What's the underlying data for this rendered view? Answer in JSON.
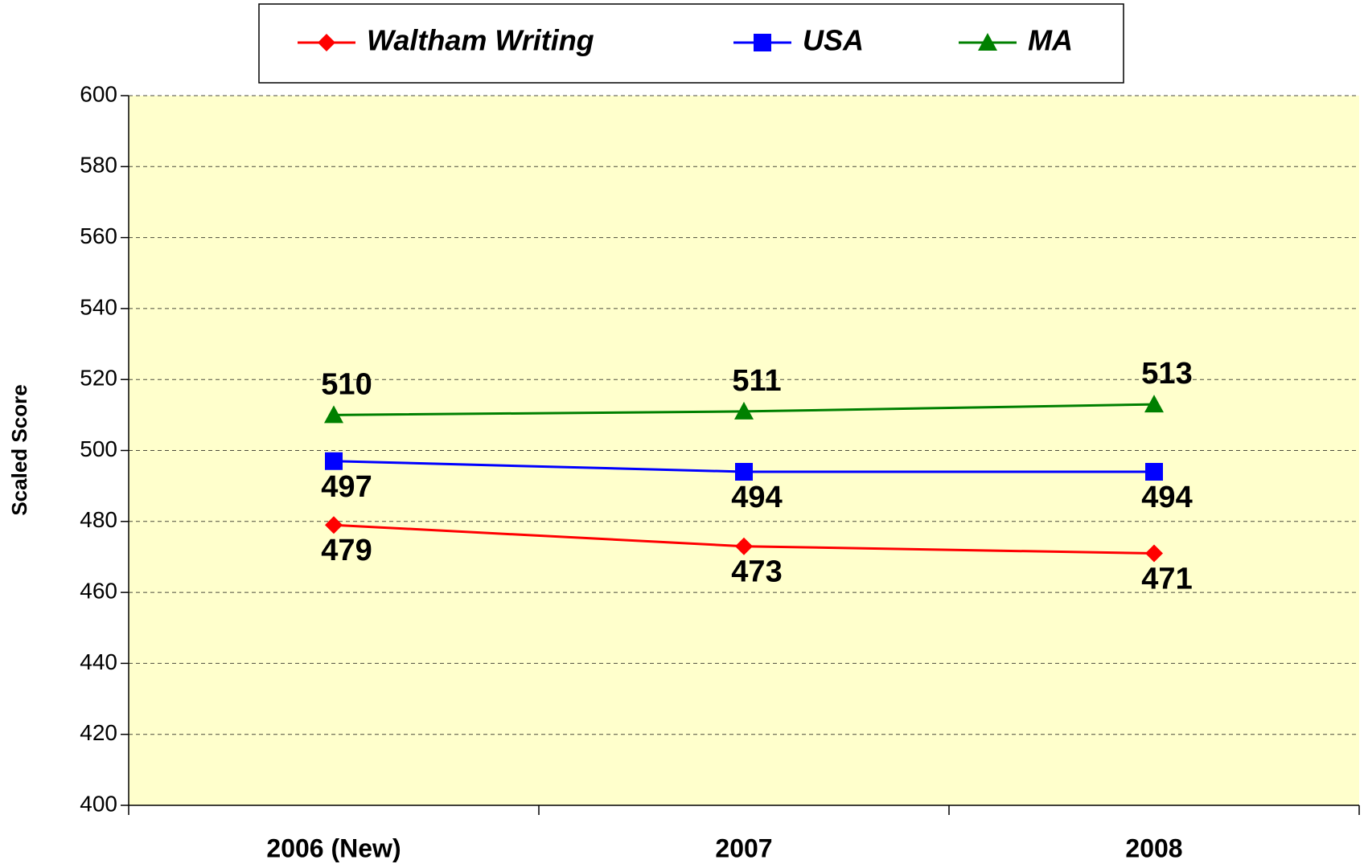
{
  "chart_data": {
    "type": "line",
    "y_label": "Scaled Score",
    "categories": [
      "2006 (New)",
      "2007",
      "2008"
    ],
    "series": [
      {
        "name": "Waltham Writing",
        "color": "#ff0000",
        "marker": "diamond",
        "values": [
          479,
          473,
          471
        ],
        "label_position": "below"
      },
      {
        "name": "USA",
        "color": "#0000ff",
        "marker": "square",
        "values": [
          497,
          494,
          494
        ],
        "label_position": "below"
      },
      {
        "name": "MA",
        "color": "#008000",
        "marker": "triangle",
        "values": [
          510,
          511,
          513
        ],
        "label_position": "above"
      }
    ],
    "ylim": [
      400,
      600
    ],
    "yticks": [
      400,
      420,
      440,
      460,
      480,
      500,
      520,
      540,
      560,
      580,
      600
    ],
    "grid": true,
    "plot_background": "#ffffcc",
    "legend": "top"
  }
}
